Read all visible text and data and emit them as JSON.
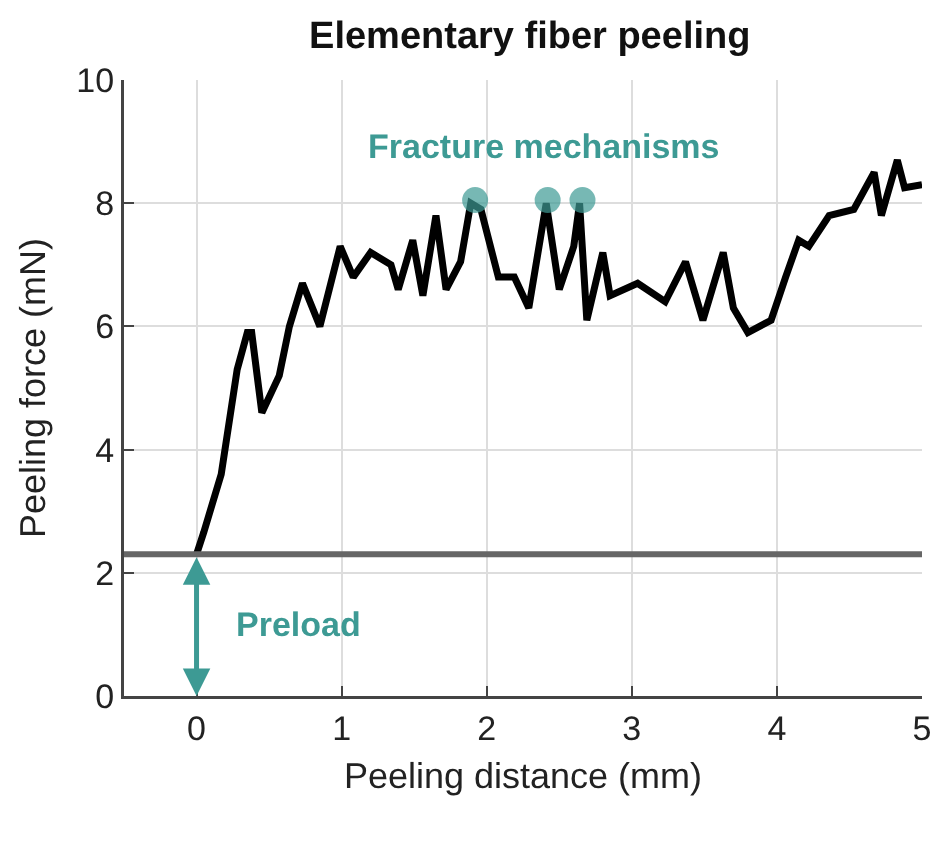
{
  "chart_data": {
    "type": "line",
    "title": "Elementary fiber peeling",
    "xlabel": "Peeling distance (mm)",
    "ylabel": "Peeling force (mN)",
    "xlim": [
      -0.5,
      5
    ],
    "xticks": [
      0,
      1,
      2,
      3,
      4,
      5
    ],
    "ylim": [
      0,
      10
    ],
    "yticks": [
      0,
      2,
      4,
      6,
      8,
      10
    ],
    "grid": true,
    "line_style": "solid",
    "series": [
      {
        "color": "#000000",
        "x": [
          0,
          0.05,
          0.17,
          0.28,
          0.35,
          0.38,
          0.45,
          0.57,
          0.64,
          0.73,
          0.85,
          0.99,
          1.08,
          1.2,
          1.34,
          1.39,
          1.49,
          1.56,
          1.65,
          1.72,
          1.82,
          1.89,
          1.96,
          2.08,
          2.19,
          2.29,
          2.41,
          2.5,
          2.6,
          2.64,
          2.69,
          2.8,
          2.85,
          3.04,
          3.23,
          3.37,
          3.49,
          3.63,
          3.7,
          3.8,
          3.96,
          4.06,
          4.15,
          4.22,
          4.36,
          4.53,
          4.67,
          4.72,
          4.83,
          4.88,
          5.0
        ],
        "values": [
          2.3,
          2.66,
          3.6,
          5.3,
          5.9,
          5.9,
          4.6,
          5.2,
          6.0,
          6.7,
          6.0,
          7.3,
          6.8,
          7.2,
          7.0,
          6.6,
          7.4,
          6.5,
          7.8,
          6.6,
          7.05,
          8.0,
          7.9,
          6.8,
          6.8,
          6.3,
          8.0,
          6.6,
          7.3,
          8.0,
          6.1,
          7.2,
          6.5,
          6.7,
          6.4,
          7.05,
          6.1,
          7.2,
          6.3,
          5.9,
          6.1,
          6.8,
          7.4,
          7.3,
          7.8,
          7.9,
          8.5,
          7.8,
          8.7,
          8.25,
          8.3
        ]
      },
      {
        "type": "scatter",
        "marker": "circle",
        "color": "#3d9a94",
        "x": [
          1.92,
          2.42,
          2.66
        ],
        "values": [
          8.05,
          8.05,
          8.05
        ]
      }
    ],
    "ref_lines": [
      {
        "axis": "y",
        "value": 2.3,
        "label": "Preload",
        "color": "#666666"
      }
    ],
    "annotations": [
      "Fracture mechanisms"
    ]
  }
}
